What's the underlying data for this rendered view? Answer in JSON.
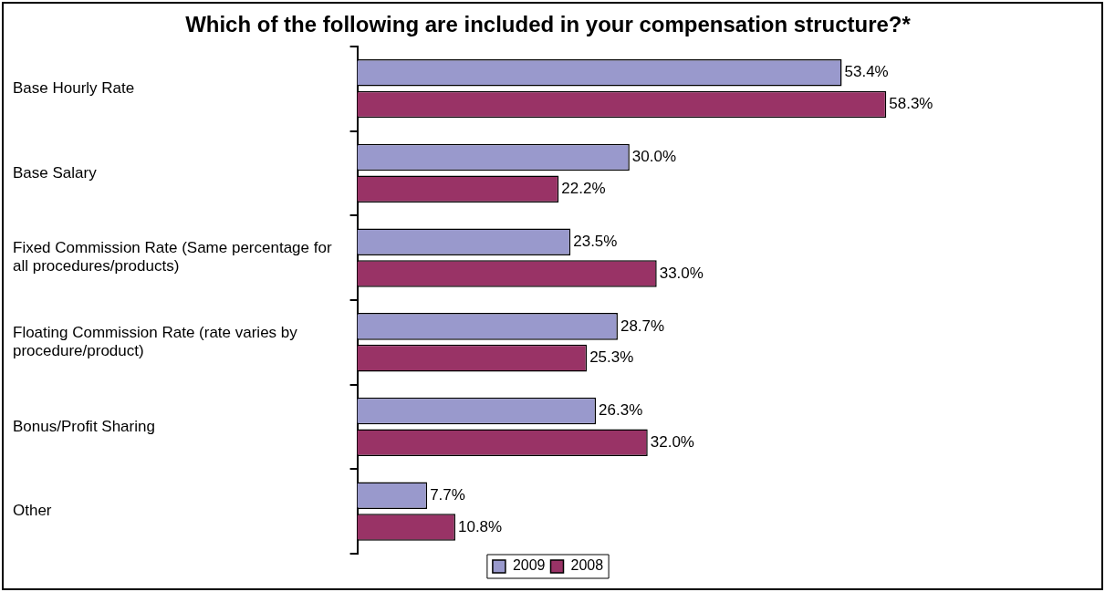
{
  "chart_data": {
    "type": "bar",
    "orientation": "horizontal",
    "title": "Which of the following are included in your compensation structure?*",
    "categories": [
      "Base Hourly Rate",
      "Base Salary",
      "Fixed Commission Rate (Same percentage for all procedures/products)",
      "Floating Commission Rate (rate varies by procedure/product)",
      "Bonus/Profit Sharing",
      "Other"
    ],
    "series": [
      {
        "name": "2009",
        "color": "#9999cc",
        "values": [
          53.4,
          30.0,
          23.5,
          28.7,
          26.3,
          7.7
        ],
        "value_labels": [
          "53.4%",
          "30.0%",
          "23.5%",
          "28.7%",
          "26.3%",
          "7.7%"
        ]
      },
      {
        "name": "2008",
        "color": "#993366",
        "values": [
          58.3,
          22.2,
          33.0,
          25.3,
          32.0,
          10.8
        ],
        "value_labels": [
          "58.3%",
          "22.2%",
          "33.0%",
          "25.3%",
          "32.0%",
          "10.8%"
        ]
      }
    ],
    "legend": "bottom",
    "grid": false
  }
}
